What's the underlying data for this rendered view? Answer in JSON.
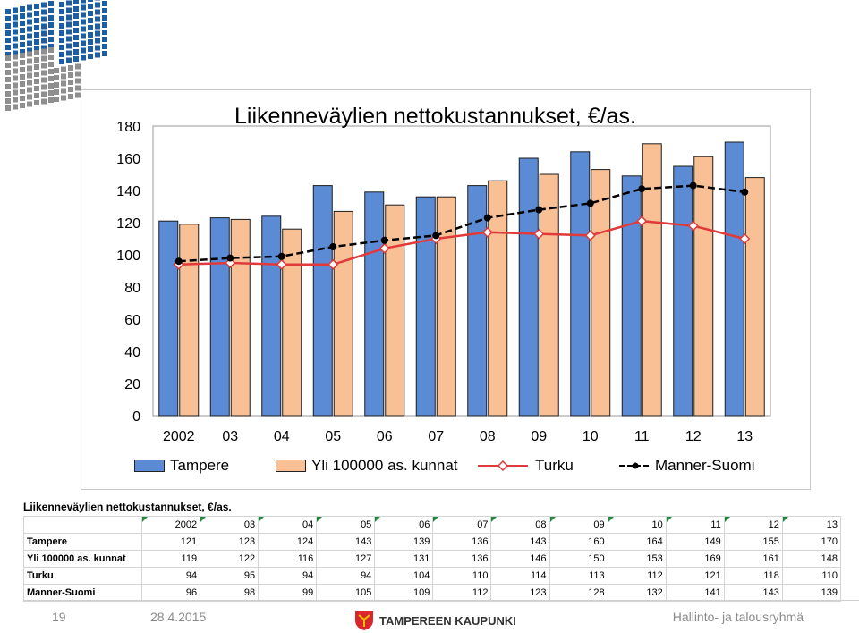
{
  "colors": {
    "tampere": "#5b8bd4",
    "yli": "#f9c095",
    "turku": "#e03a3a",
    "manner": "#000000",
    "logo_blue": "#1f5fa0",
    "logo_gray": "#8f8f8f"
  },
  "chart_data": {
    "type": "bar",
    "title": "Liikenneväylien nettokustannukset, €/as.",
    "categories": [
      "2002",
      "03",
      "04",
      "05",
      "06",
      "07",
      "08",
      "09",
      "10",
      "11",
      "12",
      "13"
    ],
    "ylim": [
      0,
      180
    ],
    "yticks": [
      0,
      20,
      40,
      60,
      80,
      100,
      120,
      140,
      160,
      180
    ],
    "legend_position": "bottom",
    "series": [
      {
        "name": "Tampere",
        "kind": "bar",
        "values": [
          121,
          123,
          124,
          143,
          139,
          136,
          143,
          160,
          164,
          149,
          155,
          170
        ]
      },
      {
        "name": "Yli 100000 as. kunnat",
        "kind": "bar",
        "values": [
          119,
          122,
          116,
          127,
          131,
          136,
          146,
          150,
          153,
          169,
          161,
          148
        ]
      },
      {
        "name": "Turku",
        "kind": "line",
        "values": [
          94,
          95,
          94,
          94,
          104,
          110,
          114,
          113,
          112,
          121,
          118,
          110
        ]
      },
      {
        "name": "Manner-Suomi",
        "kind": "line",
        "values": [
          96,
          98,
          99,
          105,
          109,
          112,
          123,
          128,
          132,
          141,
          143,
          139
        ]
      }
    ]
  },
  "table": {
    "title": "Liikenneväylien nettokustannukset, €/as.",
    "columns": [
      "2002",
      "03",
      "04",
      "05",
      "06",
      "07",
      "08",
      "09",
      "10",
      "11",
      "12",
      "13"
    ],
    "rows": [
      {
        "label": "Tampere",
        "values": [
          "121",
          "123",
          "124",
          "143",
          "139",
          "136",
          "143",
          "160",
          "164",
          "149",
          "155",
          "170"
        ]
      },
      {
        "label": "Yli 100000 as. kunnat",
        "values": [
          "119",
          "122",
          "116",
          "127",
          "131",
          "136",
          "146",
          "150",
          "153",
          "169",
          "161",
          "148"
        ]
      },
      {
        "label": "Turku",
        "values": [
          "94",
          "95",
          "94",
          "94",
          "104",
          "110",
          "114",
          "113",
          "112",
          "121",
          "118",
          "110"
        ]
      },
      {
        "label": "Manner-Suomi",
        "values": [
          "96",
          "98",
          "99",
          "105",
          "109",
          "112",
          "123",
          "128",
          "132",
          "141",
          "143",
          "139"
        ]
      }
    ]
  },
  "footer": {
    "page": "19",
    "date": "28.4.2015",
    "org": "TAMPEREEN KAUPUNKI",
    "dept": "Hallinto- ja talousryhmä"
  }
}
